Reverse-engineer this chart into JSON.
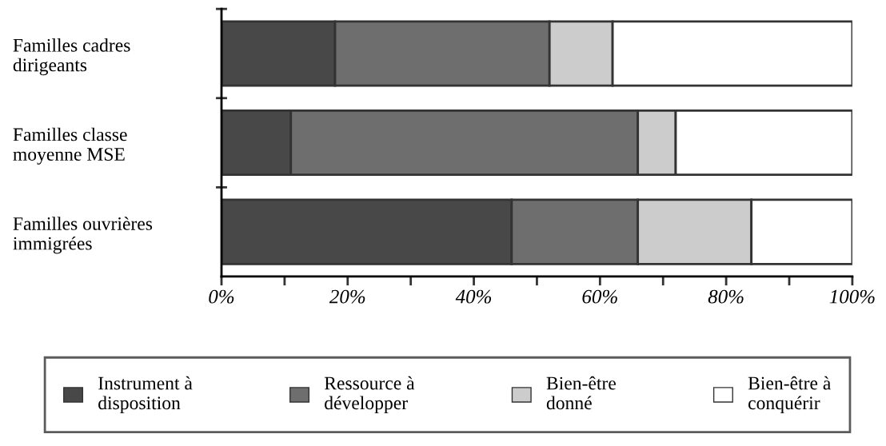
{
  "chart_data": {
    "type": "bar",
    "orientation": "horizontal",
    "stacked": true,
    "categories": [
      "Familles cadres\ndirigeants",
      "Familles classe\nmoyenne MSE",
      "Familles ouvrières\nimmigrées"
    ],
    "series": [
      {
        "name": "Instrument à\ndisposition",
        "color": "#484848",
        "values": [
          18,
          11,
          46
        ]
      },
      {
        "name": "Ressource à\ndévelopper",
        "color": "#6e6e6e",
        "values": [
          34,
          55,
          20
        ]
      },
      {
        "name": "Bien-être\ndonné",
        "color": "#cccccc",
        "values": [
          10,
          6,
          18
        ]
      },
      {
        "name": "Bien-être à\nconquérir",
        "color": "#ffffff",
        "values": [
          38,
          28,
          16
        ]
      }
    ],
    "xlim": [
      0,
      100
    ],
    "xticks": [
      {
        "value": 0,
        "label": "0%"
      },
      {
        "value": 10,
        "label": null
      },
      {
        "value": 20,
        "label": "20%"
      },
      {
        "value": 30,
        "label": null
      },
      {
        "value": 40,
        "label": "40%"
      },
      {
        "value": 50,
        "label": null
      },
      {
        "value": 60,
        "label": "60%"
      },
      {
        "value": 70,
        "label": null
      },
      {
        "value": 80,
        "label": "80%"
      },
      {
        "value": 90,
        "label": null
      },
      {
        "value": 100,
        "label": "100%"
      }
    ],
    "legend": "bottom",
    "grid": false
  }
}
